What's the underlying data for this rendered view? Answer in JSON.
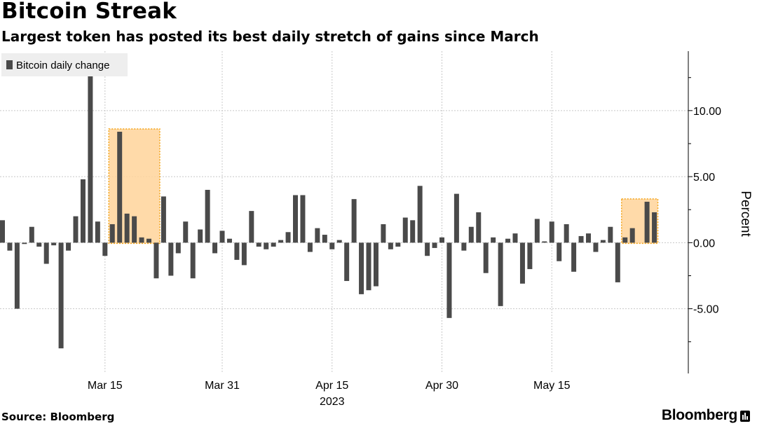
{
  "title": "Bitcoin Streak",
  "subtitle": "Largest token has posted its best daily stretch of gains since March",
  "source": "Source: Bloomberg",
  "brand": "Bloomberg",
  "colors": {
    "bar": "#4a4a4a",
    "highlight_fill": "#ffd39a",
    "highlight_stroke": "#f3a51b",
    "grid": "#c8c8c8"
  },
  "chart_data": {
    "type": "bar",
    "series": [
      {
        "name": "Bitcoin daily change",
        "values": [
          1.7,
          -0.6,
          -5.0,
          -0.1,
          1.2,
          -0.3,
          -1.6,
          -0.2,
          -8.0,
          -0.6,
          2.0,
          4.8,
          12.9,
          1.6,
          -1.0,
          1.4,
          8.4,
          2.2,
          2.0,
          0.4,
          0.3,
          -2.7,
          3.5,
          -2.5,
          -0.8,
          1.6,
          -2.7,
          1.0,
          4.0,
          -0.8,
          0.9,
          0.3,
          -1.3,
          -1.7,
          2.4,
          -0.3,
          -0.5,
          -0.3,
          0.2,
          0.8,
          3.6,
          3.6,
          -0.7,
          1.1,
          0.6,
          -0.5,
          0.2,
          -2.9,
          3.3,
          -3.9,
          -3.6,
          -3.3,
          1.4,
          -0.5,
          -0.3,
          1.9,
          1.7,
          4.3,
          -1.0,
          -0.4,
          0.4,
          -5.7,
          3.7,
          -0.6,
          1.2,
          2.3,
          -2.3,
          0.4,
          -4.8,
          0.3,
          0.7,
          -3.1,
          -2.0,
          1.8,
          0.1,
          1.6,
          -1.4,
          1.4,
          -2.2,
          0.5,
          0.7,
          -0.7,
          0.2,
          1.2,
          -3.0,
          0.4,
          1.1,
          0.0,
          3.1,
          2.3
        ]
      }
    ],
    "x_ticks": [
      "Mar 15",
      "Mar 31",
      "Apr 15",
      "Apr 30",
      "May 15"
    ],
    "x_year": "2023",
    "y_ticks": [
      "10.00",
      "5.00",
      "0.00",
      "-5.00"
    ],
    "y_tick_values": [
      10,
      5,
      0,
      -5
    ],
    "ylabel": "Percent",
    "ylim": [
      -9.9,
      14.5
    ],
    "highlights": [
      {
        "from_index": 15,
        "to_index": 21
      },
      {
        "from_index": 85,
        "to_index": 89
      }
    ],
    "grid": true,
    "legend": "top-left",
    "y_axis_side": "right"
  }
}
